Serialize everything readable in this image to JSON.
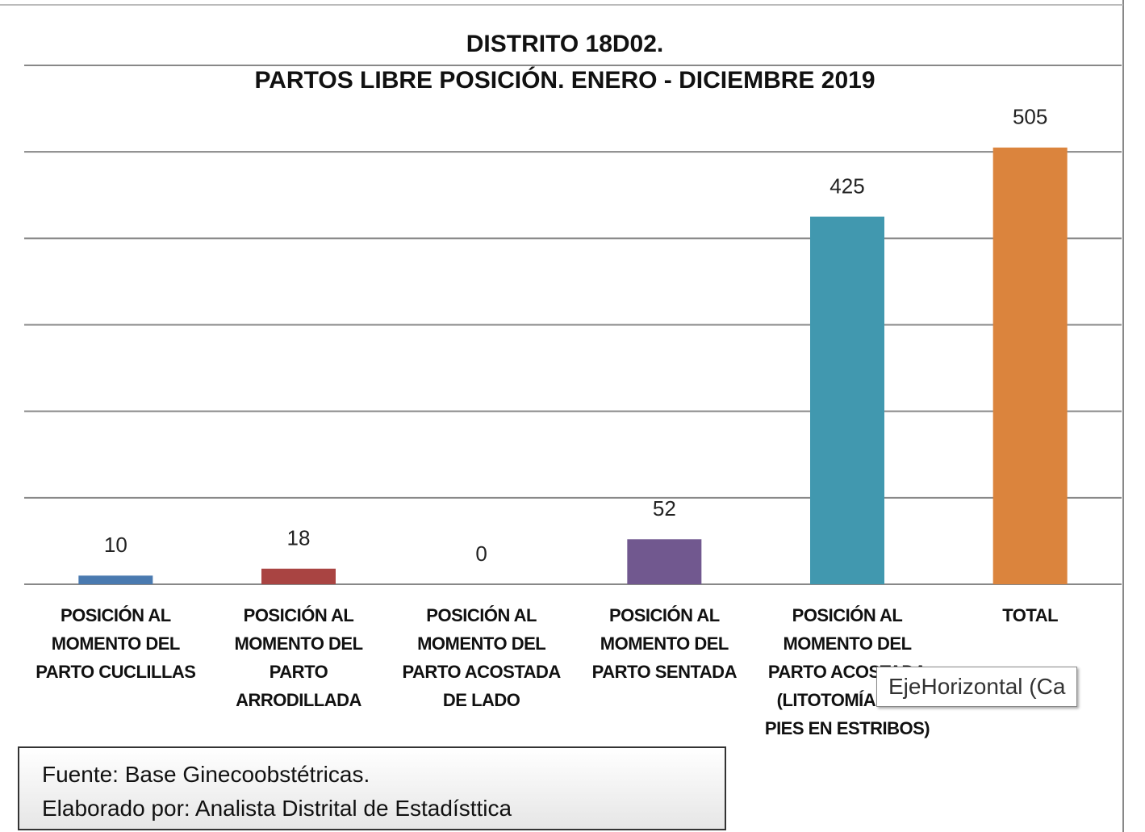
{
  "chart_data": {
    "type": "bar",
    "title": "DISTRITO 18D02.",
    "subtitle": "PARTOS  LIBRE POSICIÓN.  ENERO - DICIEMBRE  2019",
    "categories": [
      "POSICIÓN AL MOMENTO DEL PARTO CUCLILLAS",
      "POSICIÓN AL MOMENTO DEL PARTO ARRODILLADA",
      "POSICIÓN AL MOMENTO DEL PARTO ACOSTADA DE LADO",
      "POSICIÓN AL MOMENTO DEL PARTO SENTADA",
      "POSICIÓN AL MOMENTO DEL PARTO ACOSTADA (LITOTOMÍA CON PIES EN ESTRIBOS)",
      "TOTAL"
    ],
    "values": [
      10,
      18,
      0,
      52,
      425,
      505
    ],
    "colors": [
      "#4a7ab0",
      "#a94442",
      "#8aa64a",
      "#71588f",
      "#4198af",
      "#db843d"
    ],
    "ylim": [
      0,
      600
    ],
    "yticks": [
      0,
      100,
      200,
      300,
      400,
      500,
      600
    ],
    "grid": true,
    "tick_labels": false,
    "source_lines": [
      "Fuente:  Base Ginecoobstétricas.",
      "Elaborado por: Analista Distrital de Estadísttica"
    ],
    "tooltip": "EjeHorizontal (Ca"
  }
}
